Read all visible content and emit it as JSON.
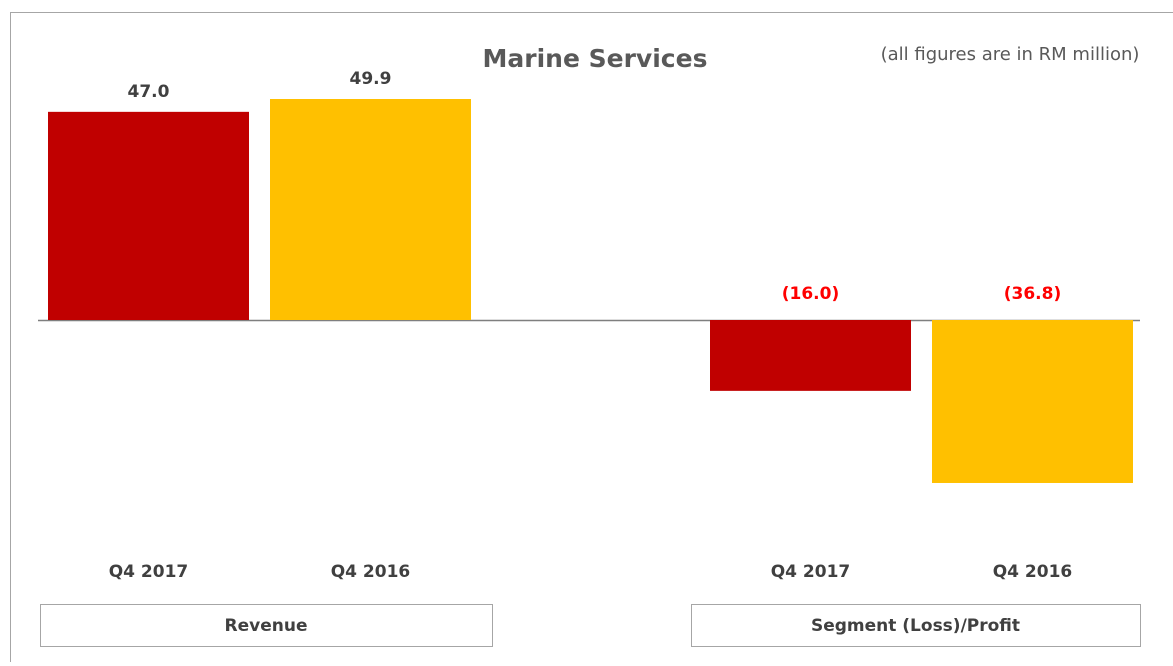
{
  "chart_data": {
    "type": "bar",
    "title": "Marine Services",
    "subtitle": "(all figures are in RM million)",
    "categories": [
      "Revenue",
      "Segment (Loss)/Profit"
    ],
    "series": [
      {
        "name": "Q4 2017",
        "color": "#c00000",
        "values": [
          47.0,
          -16.0
        ],
        "value_labels": [
          "47.0",
          "(16.0)"
        ]
      },
      {
        "name": "Q4 2016",
        "color": "#ffc000",
        "values": [
          49.9,
          -36.8
        ],
        "value_labels": [
          "49.9",
          "(36.8)"
        ]
      }
    ]
  }
}
